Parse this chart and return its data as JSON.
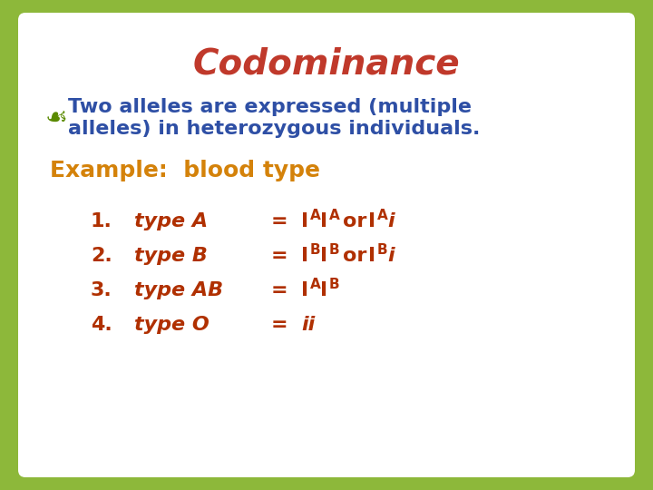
{
  "title": "Codominance",
  "title_color": "#c0392b",
  "title_fontsize": 28,
  "background_color": "#8db83a",
  "box_color": "#ffffff",
  "bullet_text_color": "#2e4fa5",
  "bullet_symbol_color": "#5a8a00",
  "example_label_color": "#d4820a",
  "list_color": "#b03000",
  "bullet_line1": "Two alleles are expressed (multiple",
  "bullet_line2": "alleles) in heterozygous individuals.",
  "example_label": "Example:  blood type",
  "nums": [
    "1.",
    "2.",
    "3.",
    "4."
  ],
  "types": [
    "type A",
    "type B",
    "type AB",
    "type O"
  ],
  "list_fontsize": 16,
  "example_fontsize": 18,
  "bullet_fontsize": 16
}
